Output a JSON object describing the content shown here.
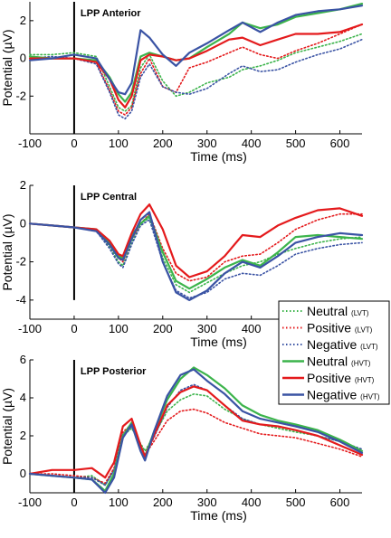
{
  "figure": {
    "xlabel": "Time (ms)",
    "ylabel": "Potential (µV)"
  },
  "legend": {
    "placement": "right, between center and posterior panels",
    "entries": [
      {
        "name": "Neutral",
        "sub": "(LVT)",
        "color": "#3cb44b",
        "style": "dotted"
      },
      {
        "name": "Positive",
        "sub": "(LVT)",
        "color": "#e41a1c",
        "style": "dotted"
      },
      {
        "name": "Negative",
        "sub": "(LVT)",
        "color": "#3a53a4",
        "style": "dotted"
      },
      {
        "name": "Neutral",
        "sub": "(HVT)",
        "color": "#3cb44b",
        "style": "solid"
      },
      {
        "name": "Positive",
        "sub": "(HVT)",
        "color": "#e41a1c",
        "style": "solid"
      },
      {
        "name": "Negative",
        "sub": "(HVT)",
        "color": "#3a53a4",
        "style": "solid"
      }
    ]
  },
  "chart_data": [
    {
      "type": "line",
      "title": "LPP Anterior",
      "xlabel": "Time (ms)",
      "ylabel": "Potential (µV)",
      "xlim": [
        -100,
        650
      ],
      "ylim": [
        -4,
        3
      ],
      "xticks": [
        -100,
        0,
        100,
        200,
        300,
        400,
        500,
        600
      ],
      "yticks": [
        -2,
        0,
        2
      ],
      "grid": false,
      "x": [
        -100,
        -50,
        0,
        50,
        80,
        100,
        115,
        130,
        150,
        170,
        200,
        230,
        260,
        300,
        350,
        380,
        420,
        460,
        500,
        550,
        600,
        650
      ],
      "series": [
        {
          "name": "Neutral (LVT)",
          "color": "#3cb44b",
          "style": "dotted",
          "values": [
            0.2,
            0.2,
            0.3,
            0.1,
            -1.5,
            -2.6,
            -2.8,
            -2.5,
            -0.5,
            0.2,
            -1.2,
            -2.0,
            -1.8,
            -1.3,
            -1.0,
            -0.6,
            -0.4,
            -0.1,
            0.3,
            0.6,
            0.9,
            1.3
          ]
        },
        {
          "name": "Positive (LVT)",
          "color": "#e41a1c",
          "style": "dotted",
          "values": [
            0.1,
            0.0,
            0.0,
            -0.2,
            -1.7,
            -2.8,
            -3.0,
            -2.6,
            -0.8,
            0.0,
            -1.5,
            -1.8,
            -0.5,
            -0.2,
            0.3,
            0.6,
            0.2,
            0.0,
            0.4,
            0.8,
            1.3,
            1.8
          ]
        },
        {
          "name": "Negative (LVT)",
          "color": "#3a53a4",
          "style": "dotted",
          "values": [
            0.0,
            0.1,
            0.0,
            -0.3,
            -1.8,
            -3.0,
            -3.2,
            -2.8,
            -1.0,
            -0.3,
            -1.5,
            -1.8,
            -1.9,
            -1.6,
            -0.8,
            -0.4,
            -0.7,
            -0.6,
            -0.2,
            0.2,
            0.5,
            1.0
          ]
        },
        {
          "name": "Neutral (HVT)",
          "color": "#3cb44b",
          "style": "solid",
          "values": [
            0.1,
            0.0,
            0.0,
            -0.1,
            -1.0,
            -1.9,
            -2.3,
            -1.8,
            0.1,
            0.3,
            0.1,
            -0.1,
            0.0,
            0.6,
            1.3,
            1.9,
            1.6,
            1.8,
            2.2,
            2.4,
            2.6,
            2.9
          ]
        },
        {
          "name": "Positive (HVT)",
          "color": "#e41a1c",
          "style": "solid",
          "values": [
            0.0,
            0.0,
            0.0,
            -0.2,
            -1.1,
            -2.2,
            -2.6,
            -2.0,
            -0.1,
            0.2,
            0.1,
            -0.1,
            0.0,
            0.4,
            1.0,
            1.1,
            0.7,
            1.0,
            1.3,
            1.3,
            1.4,
            1.8
          ]
        },
        {
          "name": "Negative (HVT)",
          "color": "#3a53a4",
          "style": "solid",
          "values": [
            -0.1,
            0.0,
            0.2,
            0.0,
            -1.1,
            -1.8,
            -1.9,
            -1.3,
            1.5,
            1.1,
            0.2,
            -0.4,
            0.3,
            0.8,
            1.5,
            1.9,
            1.4,
            1.9,
            2.3,
            2.5,
            2.6,
            2.8
          ]
        }
      ]
    },
    {
      "type": "line",
      "title": "LPP Central",
      "xlabel": "Time (ms)",
      "ylabel": "Potential (µV)",
      "xlim": [
        -100,
        650
      ],
      "ylim": [
        -5,
        2
      ],
      "xticks": [
        -100,
        0,
        100,
        200,
        300,
        400,
        500,
        600
      ],
      "yticks": [
        -4,
        -2,
        0,
        2
      ],
      "grid": false,
      "x": [
        -100,
        -50,
        0,
        50,
        80,
        100,
        110,
        130,
        150,
        170,
        200,
        230,
        260,
        300,
        340,
        380,
        420,
        460,
        500,
        550,
        600,
        650
      ],
      "series": [
        {
          "name": "Neutral (LVT)",
          "color": "#3cb44b",
          "style": "dotted",
          "values": [
            0.0,
            -0.1,
            -0.2,
            -0.4,
            -1.2,
            -2.0,
            -2.2,
            -1.0,
            0.0,
            0.3,
            -1.8,
            -3.2,
            -3.6,
            -3.1,
            -2.6,
            -2.2,
            -2.0,
            -1.6,
            -1.3,
            -1.0,
            -0.8,
            -0.7
          ]
        },
        {
          "name": "Positive (LVT)",
          "color": "#e41a1c",
          "style": "dotted",
          "values": [
            0.0,
            -0.1,
            -0.2,
            -0.3,
            -1.0,
            -1.8,
            -2.0,
            -0.8,
            0.0,
            0.5,
            -1.3,
            -2.6,
            -3.0,
            -2.8,
            -2.0,
            -1.7,
            -1.6,
            -1.0,
            -0.3,
            0.2,
            0.5,
            0.5
          ]
        },
        {
          "name": "Negative (LVT)",
          "color": "#3a53a4",
          "style": "dotted",
          "values": [
            0.0,
            -0.1,
            -0.2,
            -0.4,
            -1.3,
            -2.1,
            -2.3,
            -1.1,
            -0.1,
            0.2,
            -2.0,
            -3.5,
            -3.9,
            -3.6,
            -2.9,
            -2.6,
            -2.7,
            -2.2,
            -1.6,
            -1.3,
            -1.1,
            -1.0
          ]
        },
        {
          "name": "Neutral (HVT)",
          "color": "#3cb44b",
          "style": "solid",
          "values": [
            0.0,
            -0.1,
            -0.2,
            -0.3,
            -1.0,
            -1.7,
            -1.8,
            -0.6,
            0.0,
            0.4,
            -1.5,
            -3.0,
            -3.4,
            -2.9,
            -2.3,
            -1.9,
            -2.2,
            -1.5,
            -0.7,
            -0.6,
            -0.7,
            -0.8
          ]
        },
        {
          "name": "Positive (HVT)",
          "color": "#e41a1c",
          "style": "solid",
          "values": [
            0.0,
            -0.1,
            -0.2,
            -0.3,
            -0.9,
            -1.6,
            -1.7,
            -0.5,
            0.5,
            1.0,
            -0.3,
            -2.2,
            -2.8,
            -2.5,
            -1.7,
            -0.6,
            -0.7,
            -0.1,
            0.3,
            0.7,
            0.8,
            0.4
          ]
        },
        {
          "name": "Negative (HVT)",
          "color": "#3a53a4",
          "style": "solid",
          "values": [
            0.0,
            -0.1,
            -0.2,
            -0.4,
            -1.1,
            -1.8,
            -1.9,
            -0.8,
            0.2,
            0.6,
            -2.0,
            -3.6,
            -4.0,
            -3.5,
            -2.6,
            -2.0,
            -2.3,
            -1.7,
            -1.0,
            -0.7,
            -0.5,
            -0.6
          ]
        }
      ]
    },
    {
      "type": "line",
      "title": "LPP Posterior",
      "xlabel": "Time (ms)",
      "ylabel": "Potential (µV)",
      "xlim": [
        -100,
        650
      ],
      "ylim": [
        -1,
        6
      ],
      "xticks": [
        -100,
        0,
        100,
        200,
        300,
        400,
        500,
        600
      ],
      "yticks": [
        0,
        2,
        4,
        6
      ],
      "grid": false,
      "x": [
        -100,
        -50,
        0,
        40,
        70,
        90,
        110,
        130,
        150,
        160,
        180,
        210,
        240,
        270,
        300,
        340,
        380,
        420,
        460,
        500,
        550,
        600,
        650
      ],
      "series": [
        {
          "name": "Neutral (LVT)",
          "color": "#3cb44b",
          "style": "dotted",
          "values": [
            0.0,
            -0.1,
            -0.2,
            -0.1,
            -0.6,
            0.2,
            2.0,
            2.4,
            1.6,
            1.2,
            2.0,
            3.3,
            3.9,
            4.2,
            4.1,
            3.4,
            2.9,
            2.6,
            2.4,
            2.2,
            2.0,
            1.7,
            1.2
          ]
        },
        {
          "name": "Positive (LVT)",
          "color": "#e41a1c",
          "style": "dotted",
          "values": [
            0.0,
            0.0,
            -0.1,
            -0.2,
            -0.5,
            0.3,
            2.2,
            2.6,
            1.4,
            1.0,
            1.7,
            2.8,
            3.3,
            3.4,
            3.2,
            2.7,
            2.4,
            2.1,
            2.0,
            1.9,
            1.6,
            1.3,
            0.9
          ]
        },
        {
          "name": "Negative (LVT)",
          "color": "#3a53a4",
          "style": "dotted",
          "values": [
            0.0,
            -0.1,
            -0.2,
            -0.2,
            -0.6,
            0.2,
            2.1,
            2.5,
            1.5,
            1.0,
            1.9,
            3.5,
            4.4,
            4.7,
            4.4,
            3.6,
            2.9,
            2.6,
            2.5,
            2.3,
            2.0,
            1.7,
            1.3
          ]
        },
        {
          "name": "Neutral (HVT)",
          "color": "#3cb44b",
          "style": "solid",
          "values": [
            0.0,
            -0.1,
            -0.2,
            -0.3,
            -0.9,
            0.0,
            2.0,
            2.7,
            1.5,
            0.9,
            2.2,
            3.9,
            5.0,
            5.6,
            5.2,
            4.5,
            3.6,
            3.1,
            2.8,
            2.6,
            2.3,
            1.8,
            1.2
          ]
        },
        {
          "name": "Positive (HVT)",
          "color": "#e41a1c",
          "style": "solid",
          "values": [
            0.0,
            0.2,
            0.2,
            0.3,
            -0.2,
            0.6,
            2.5,
            2.9,
            1.5,
            0.9,
            2.0,
            3.6,
            4.3,
            4.6,
            4.4,
            3.6,
            2.8,
            2.6,
            2.5,
            2.3,
            2.0,
            1.5,
            1.0
          ]
        },
        {
          "name": "Negative (HVT)",
          "color": "#3a53a4",
          "style": "solid",
          "values": [
            0.0,
            -0.1,
            -0.2,
            -0.3,
            -1.0,
            -0.2,
            1.9,
            2.6,
            1.2,
            0.7,
            2.2,
            4.1,
            5.2,
            5.5,
            4.9,
            4.2,
            3.3,
            2.9,
            2.7,
            2.5,
            2.2,
            1.7,
            1.1
          ]
        }
      ]
    }
  ]
}
